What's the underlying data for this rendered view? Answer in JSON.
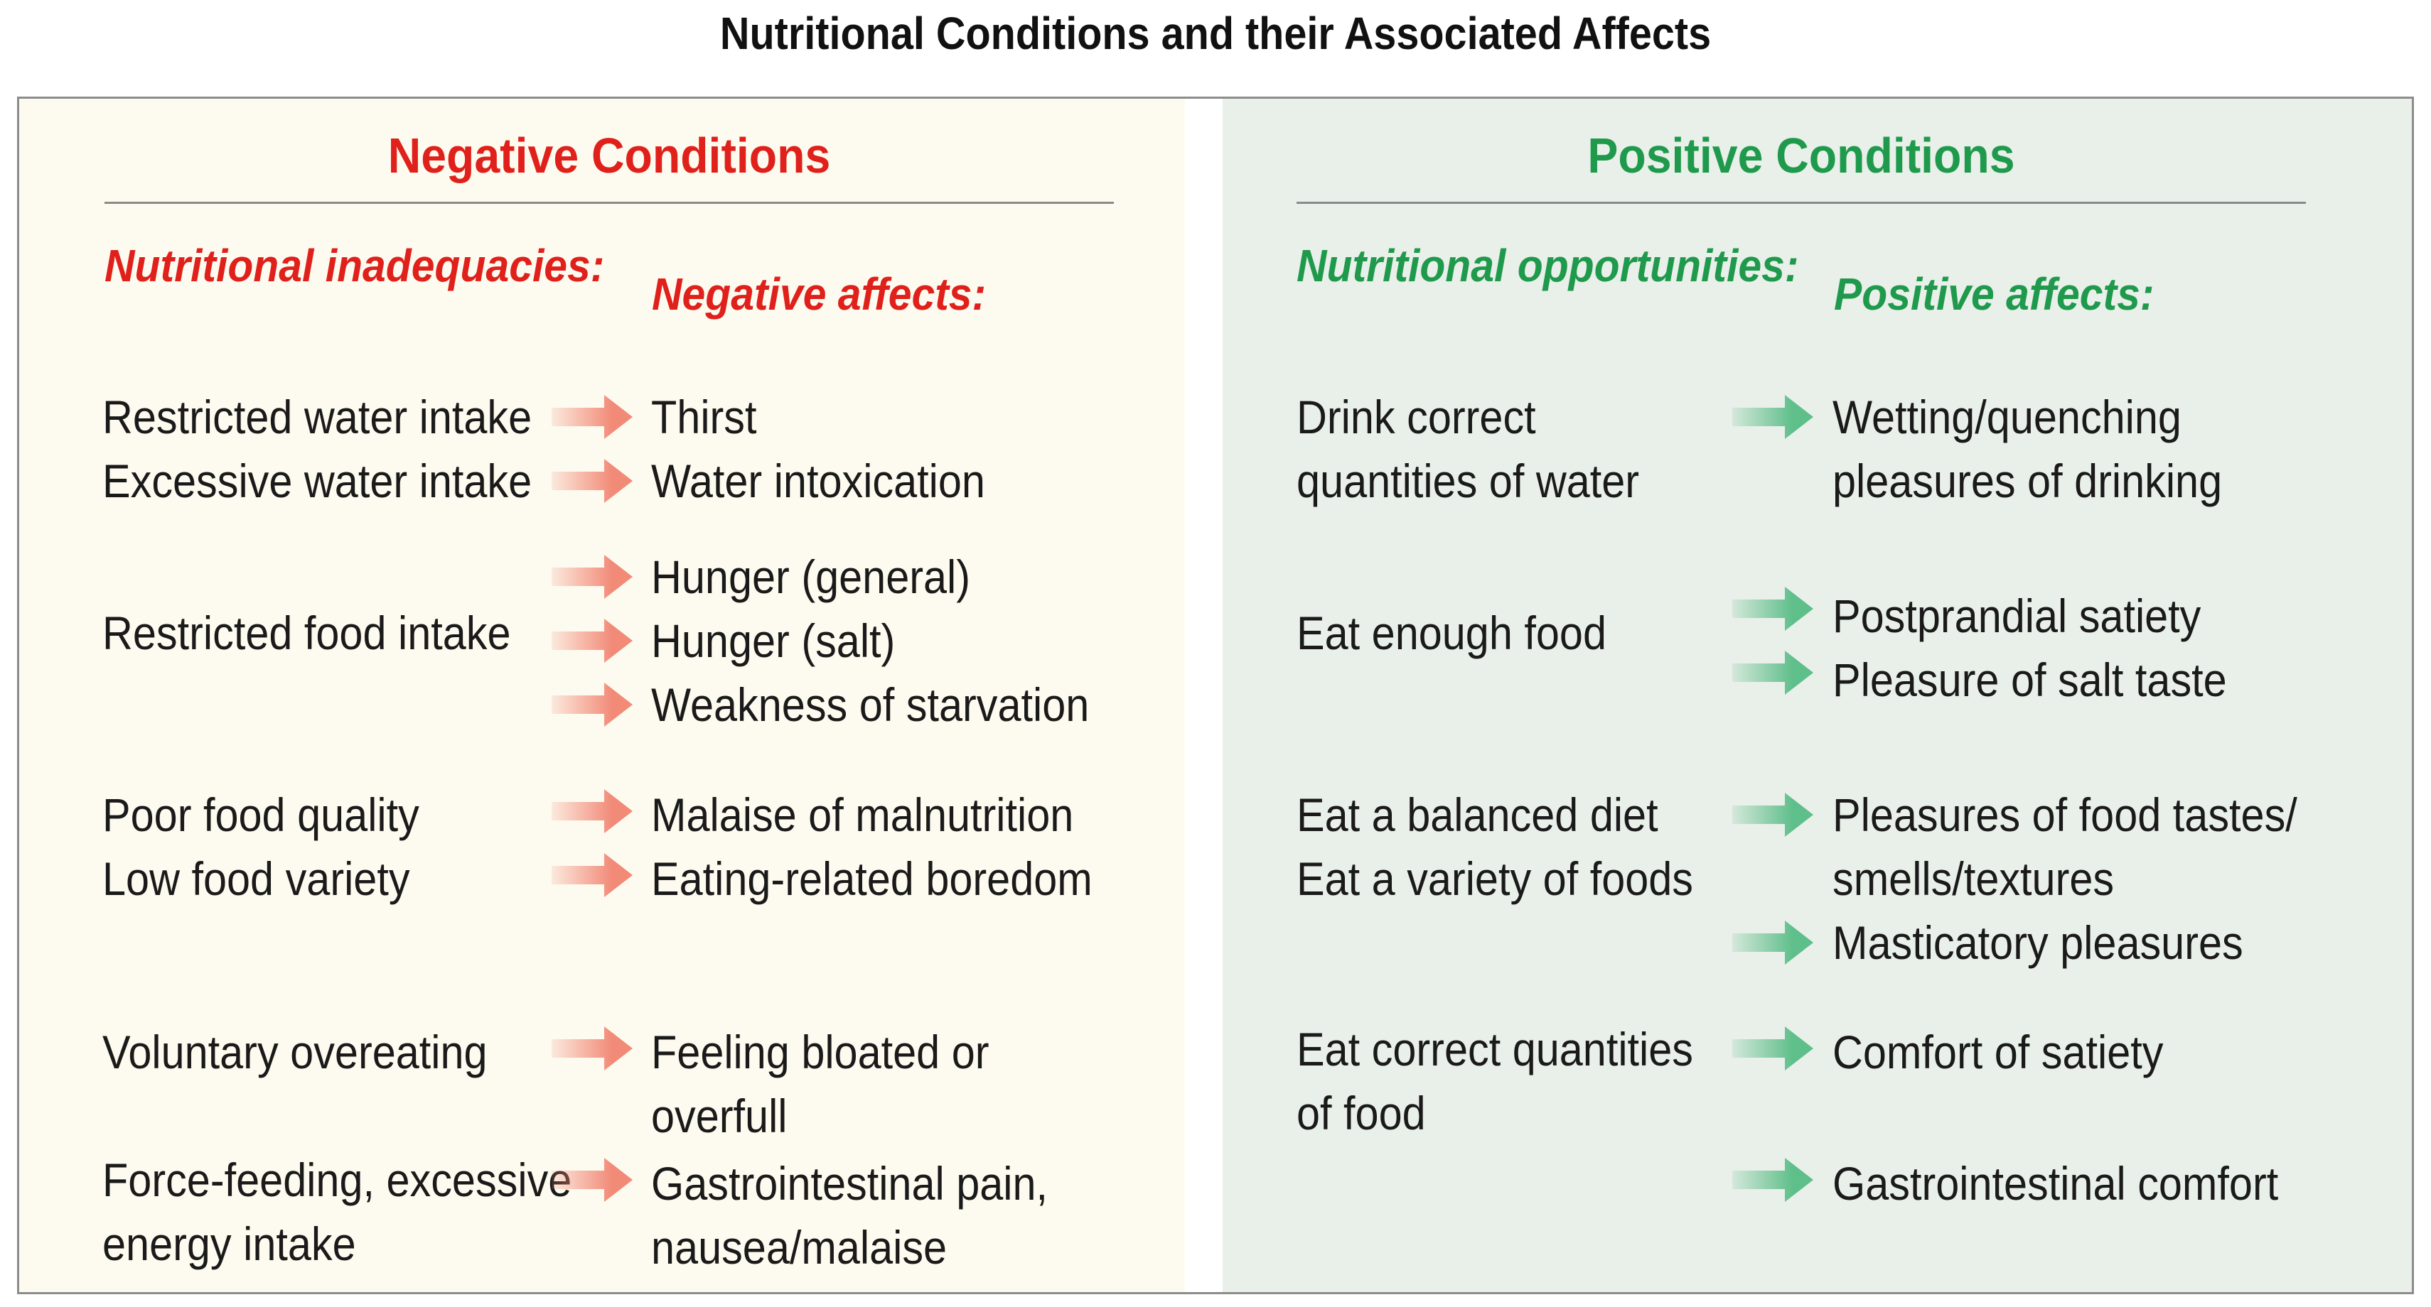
{
  "title": "Nutritional Conditions and their Associated Affects",
  "colors": {
    "negative_text": "#e0201b",
    "negative_panel_bg": "#fdfbef",
    "negative_arrow": "#f28a78",
    "positive_text": "#1f9a4c",
    "positive_panel_bg": "#e9efe9",
    "positive_arrow": "#5fbf8a",
    "rule": "#8a8a8a"
  },
  "negative": {
    "heading": "Negative Conditions",
    "col1_header": "Nutritional\ninadequacies:",
    "col2_header": "Negative affects:",
    "conditions": [
      "Restricted water intake",
      "Excessive water intake",
      "Restricted food intake",
      "Poor food quality",
      "Low food variety",
      "Voluntary overeating",
      "Force-feeding, excessive\nenergy intake"
    ],
    "affects": [
      "Thirst",
      "Water intoxication",
      "Hunger (general)",
      "Hunger (salt)",
      "Weakness of starvation",
      "Malaise of malnutrition",
      "Eating-related boredom",
      "Feeling bloated or overfull",
      "Gastrointestinal pain,\nnausea/malaise"
    ]
  },
  "positive": {
    "heading": "Positive Conditions",
    "col1_header": "Nutritional\nopportunities:",
    "col2_header": "Positive affects:",
    "conditions": [
      "Drink correct\nquantities of water",
      "Eat enough food",
      "Eat a balanced diet\nEat a variety of foods",
      "Eat correct quantities\nof food"
    ],
    "affects": [
      "Wetting/quenching\npleasures of drinking",
      "Postprandial satiety",
      "Pleasure of salt taste",
      "Pleasures of food tastes/\nsmells/textures",
      "Masticatory pleasures",
      "Comfort of satiety",
      "Gastrointestinal comfort"
    ]
  }
}
